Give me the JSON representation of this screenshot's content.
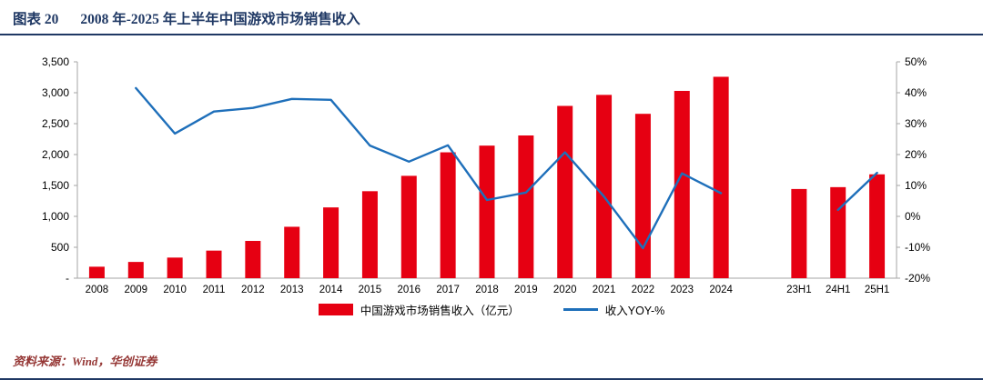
{
  "header": {
    "label": "图表 20",
    "title": "2008 年-2025 年上半年中国游戏市场销售收入"
  },
  "legend": {
    "bars": "中国游戏市场销售收入（亿元）",
    "line": "收入YOY-%"
  },
  "footer": {
    "source": "资料来源：Wind，华创证券"
  },
  "colors": {
    "bar": "#e60012",
    "line": "#1e6fba",
    "navy": "#1f3864",
    "source": "#953735",
    "axis": "#a6a6a6"
  },
  "chart_data": {
    "type": "bar",
    "subtype": "bar+line combo, dual axis",
    "title": "图表 20 2008 年-2025 年上半年中国游戏市场销售收入",
    "categories": [
      "2008",
      "2009",
      "2010",
      "2011",
      "2012",
      "2013",
      "2014",
      "2015",
      "2016",
      "2017",
      "2018",
      "2019",
      "2020",
      "2021",
      "2022",
      "2023",
      "2024",
      "23H1",
      "24H1",
      "25H1"
    ],
    "gap_after_index": 16,
    "series": [
      {
        "name": "中国游戏市场销售收入（亿元）",
        "type": "bar",
        "axis": "left",
        "values": [
          185.6,
          262.8,
          333.2,
          446.1,
          602.8,
          831.7,
          1144.8,
          1407.0,
          1655.7,
          2036.1,
          2144.4,
          2308.8,
          2786.9,
          2965.1,
          2658.8,
          3029.6,
          3257.8,
          1442.6,
          1472.7,
          1680.0
        ]
      },
      {
        "name": "收入YOY-%",
        "type": "line",
        "axis": "right",
        "values": [
          null,
          41.5,
          26.8,
          33.9,
          35.1,
          38.0,
          37.7,
          22.9,
          17.7,
          23.0,
          5.3,
          7.7,
          20.7,
          6.4,
          -10.3,
          13.9,
          7.5,
          null,
          2.1,
          14.1
        ]
      }
    ],
    "left_axis": {
      "min": 0,
      "max": 3500,
      "ticks": [
        {
          "label": "3,500",
          "value": 3500
        },
        {
          "label": "3,000",
          "value": 3000
        },
        {
          "label": "2,500",
          "value": 2500
        },
        {
          "label": "2,000",
          "value": 2000
        },
        {
          "label": "1,500",
          "value": 1500
        },
        {
          "label": "1,000",
          "value": 1000
        },
        {
          "label": "500",
          "value": 500
        },
        {
          "label": "-",
          "value": 0
        }
      ]
    },
    "right_axis": {
      "min": -20,
      "max": 50,
      "ticks": [
        {
          "label": "50%",
          "value": 50
        },
        {
          "label": "40%",
          "value": 40
        },
        {
          "label": "30%",
          "value": 30
        },
        {
          "label": "20%",
          "value": 20
        },
        {
          "label": "10%",
          "value": 10
        },
        {
          "label": "0%",
          "value": 0
        },
        {
          "label": "-10%",
          "value": -10
        },
        {
          "label": "-20%",
          "value": -20
        }
      ]
    },
    "grid": false,
    "legend_position": "bottom"
  }
}
